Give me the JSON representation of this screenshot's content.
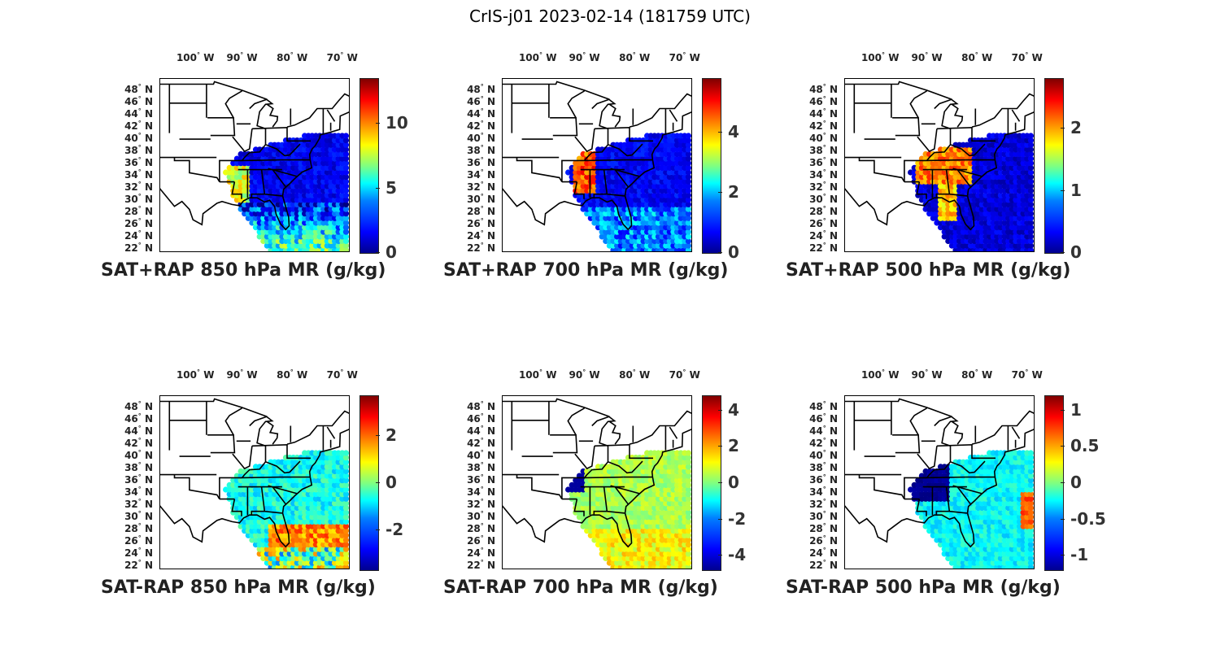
{
  "title": "CrIS-j01 2023-02-14 (181759 UTC)",
  "lon_ticks": [
    "100",
    "90",
    "80",
    "70"
  ],
  "lon_suffix": "W",
  "lat_ticks": [
    "48",
    "46",
    "44",
    "42",
    "40",
    "38",
    "36",
    "34",
    "32",
    "30",
    "28",
    "26",
    "24",
    "22"
  ],
  "lat_suffix": "N",
  "degree_symbol": "°",
  "map_extent": {
    "lon": [
      -106,
      -68
    ],
    "lat": [
      21.5,
      50
    ]
  },
  "colormap": "jet",
  "panels": [
    {
      "title": "SAT+RAP 850 hPa MR (g/kg)",
      "chart_data": {
        "type": "heatmap",
        "quantity": "850 hPa mixing ratio",
        "units": "g/kg",
        "clim": [
          0,
          13.5
        ],
        "cbar_ticks": [
          "0",
          "5",
          "10"
        ],
        "cbar_tick_values": [
          0,
          5,
          10
        ],
        "pattern": "sum"
      }
    },
    {
      "title": "SAT+RAP 700 hPa MR (g/kg)",
      "chart_data": {
        "type": "heatmap",
        "quantity": "700 hPa mixing ratio",
        "units": "g/kg",
        "clim": [
          0,
          5.8
        ],
        "cbar_ticks": [
          "0",
          "2",
          "4"
        ],
        "cbar_tick_values": [
          0,
          2,
          4
        ],
        "pattern": "sum"
      }
    },
    {
      "title": "SAT+RAP 500 hPa MR (g/kg)",
      "chart_data": {
        "type": "heatmap",
        "quantity": "500 hPa mixing ratio",
        "units": "g/kg",
        "clim": [
          0,
          2.8
        ],
        "cbar_ticks": [
          "0",
          "1",
          "2"
        ],
        "cbar_tick_values": [
          0,
          1,
          2
        ],
        "pattern": "sum"
      }
    },
    {
      "title": "SAT-RAP 850 hPa MR (g/kg)",
      "chart_data": {
        "type": "heatmap",
        "quantity": "850 hPa mixing ratio difference",
        "units": "g/kg",
        "clim": [
          -3.7,
          3.7
        ],
        "cbar_ticks": [
          "-2",
          "0",
          "2"
        ],
        "cbar_tick_values": [
          -2,
          0,
          2
        ],
        "pattern": "diff"
      }
    },
    {
      "title": "SAT-RAP 700 hPa MR (g/kg)",
      "chart_data": {
        "type": "heatmap",
        "quantity": "700 hPa mixing ratio difference",
        "units": "g/kg",
        "clim": [
          -4.8,
          4.8
        ],
        "cbar_ticks": [
          "-4",
          "-2",
          "0",
          "2",
          "4"
        ],
        "cbar_tick_values": [
          -4,
          -2,
          0,
          2,
          4
        ],
        "pattern": "diff"
      }
    },
    {
      "title": "SAT-RAP 500 hPa MR (g/kg)",
      "chart_data": {
        "type": "heatmap",
        "quantity": "500 hPa mixing ratio difference",
        "units": "g/kg",
        "clim": [
          -1.2,
          1.2
        ],
        "cbar_ticks": [
          "-1",
          "-0.5",
          "0",
          "0.5",
          "1"
        ],
        "cbar_tick_values": [
          -1,
          -0.5,
          0,
          0.5,
          1
        ],
        "pattern": "diff"
      }
    }
  ]
}
